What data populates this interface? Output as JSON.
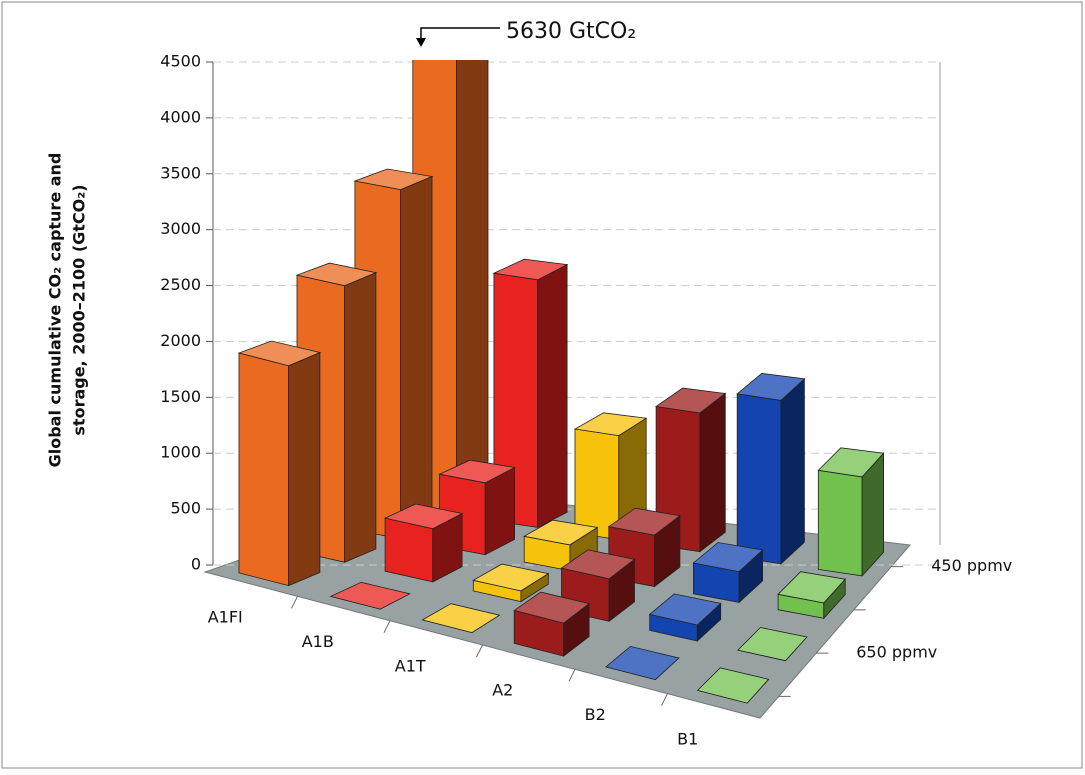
{
  "chart_data": {
    "type": "bar3d",
    "ylabel": [
      "Global cumulative CO₂ capture and",
      "storage, 2000–2100 (GtCO₂)"
    ],
    "annotation": "5630 GtCO₂",
    "categories": [
      "A1FI",
      "A1B",
      "A1T",
      "A2",
      "B2",
      "B1"
    ],
    "colors": [
      "#ea6a1f",
      "#e8221e",
      "#f7c20a",
      "#9c1c1c",
      "#1444b0",
      "#72c04e"
    ],
    "series": [
      {
        "name": "450 ppmv",
        "values": [
          5630,
          2500,
          1050,
          1400,
          1650,
          1000
        ]
      },
      {
        "name": null,
        "values": [
          3400,
          700,
          250,
          500,
          300,
          150
        ]
      },
      {
        "name": "650 ppmv",
        "values": [
          2600,
          500,
          100,
          400,
          150,
          0
        ]
      },
      {
        "name": null,
        "values": [
          2000,
          0,
          0,
          300,
          0,
          0
        ]
      }
    ],
    "ylim": [
      0,
      4500
    ],
    "yticks": [
      0,
      500,
      1000,
      1500,
      2000,
      2500,
      3000,
      3500,
      4000,
      4500
    ],
    "grid": true
  }
}
